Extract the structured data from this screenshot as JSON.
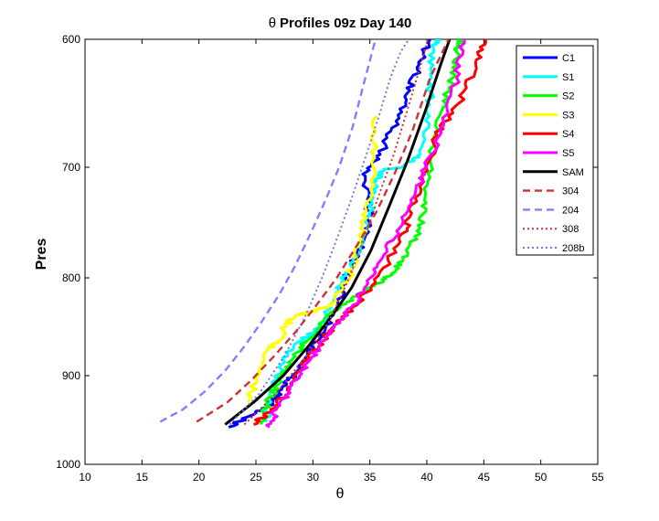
{
  "chart_data": {
    "type": "line",
    "title_symbol": "θ",
    "title_text": "Profiles 09z Day 140",
    "xlabel": "θ",
    "ylabel": "Pres",
    "xlim": [
      10,
      55
    ],
    "ylim": [
      600,
      1000
    ],
    "y_reversed": true,
    "x_ticks": [
      10,
      15,
      20,
      25,
      30,
      35,
      40,
      45,
      50,
      55
    ],
    "y_ticks": [
      600,
      700,
      800,
      900,
      1000
    ],
    "y_tick_positions": [
      600,
      700,
      800,
      900,
      1000
    ],
    "grid": false,
    "legend_position": "top-right",
    "series": [
      {
        "name": "C1",
        "color": "#0000ff",
        "dash": "solid",
        "width": 3,
        "x": [
          22.6,
          25.0,
          26.5,
          27.3,
          28.4,
          29.5,
          30.6,
          31.8,
          32.9,
          33.9,
          35.0,
          34.6,
          35.9,
          37.3,
          38.5,
          39.3,
          40.3
        ],
        "y": [
          958,
          942,
          932,
          914,
          898,
          880,
          858,
          838,
          800,
          778,
          750,
          708,
          690,
          664,
          640,
          620,
          600
        ]
      },
      {
        "name": "S1",
        "color": "#00ffff",
        "dash": "solid",
        "width": 3,
        "x": [
          26.0,
          26.2,
          27.3,
          28.4,
          30.2,
          31.6,
          32.5,
          33.9,
          35.0,
          35.4,
          36.3,
          37.8,
          39.4,
          40.2,
          40.4,
          40.5,
          41.0
        ],
        "y": [
          952,
          920,
          888,
          868,
          855,
          830,
          805,
          780,
          740,
          715,
          702,
          700,
          690,
          660,
          630,
          605,
          600
        ]
      },
      {
        "name": "S2",
        "color": "#00ff00",
        "dash": "solid",
        "width": 3,
        "x": [
          25.5,
          26.0,
          27.1,
          28.3,
          29.5,
          31.6,
          33.9,
          35.4,
          36.9,
          38.3,
          39.4,
          39.8,
          40.3,
          41.3,
          42.3,
          42.6,
          42.9
        ],
        "y": [
          955,
          930,
          905,
          882,
          864,
          835,
          818,
          808,
          796,
          780,
          755,
          730,
          695,
          656,
          630,
          610,
          600
        ]
      },
      {
        "name": "S3",
        "color": "#ffff00",
        "dash": "solid",
        "width": 3,
        "x": [
          24.3,
          25.2,
          25.9,
          27.1,
          27.6,
          28.6,
          30.2,
          31.8,
          33.0,
          34.1,
          34.7,
          35.3,
          35.6
        ],
        "y": [
          930,
          900,
          875,
          864,
          848,
          838,
          834,
          826,
          804,
          770,
          740,
          700,
          660
        ]
      },
      {
        "name": "S4",
        "color": "#ff0000",
        "dash": "solid",
        "width": 3,
        "x": [
          24.8,
          26.0,
          27.6,
          28.8,
          30.5,
          31.8,
          33.5,
          35.5,
          37.5,
          38.5,
          39.6,
          40.9,
          42.8,
          44.3,
          45.1
        ],
        "y": [
          955,
          942,
          922,
          895,
          870,
          850,
          830,
          805,
          770,
          745,
          710,
          675,
          650,
          620,
          600
        ]
      },
      {
        "name": "S5",
        "color": "#ff00ff",
        "dash": "solid",
        "width": 3,
        "x": [
          26.2,
          26.8,
          28.0,
          29.1,
          30.5,
          31.9,
          33.4,
          34.7,
          36.1,
          37.6,
          39.0,
          40.4,
          41.5,
          42.6,
          43.3
        ],
        "y": [
          958,
          938,
          915,
          894,
          872,
          850,
          830,
          808,
          782,
          755,
          723,
          690,
          665,
          630,
          600
        ]
      },
      {
        "name": "SAM",
        "color": "#000000",
        "dash": "solid",
        "width": 3,
        "x": [
          22.3,
          24.8,
          27.4,
          29.6,
          31.6,
          33.4,
          35.1,
          36.7,
          38.3,
          39.9,
          41.2,
          42.0
        ],
        "y": [
          955,
          930,
          900,
          870,
          840,
          810,
          775,
          735,
          695,
          655,
          620,
          600
        ]
      },
      {
        "name": "304",
        "color": "#cc3333",
        "dash": "8,5",
        "width": 2.4,
        "x": [
          19.8,
          22.5,
          24.6,
          26.6,
          28.5,
          30.3,
          32.1,
          33.9,
          35.6,
          37.2,
          38.8,
          40.3,
          41.9
        ],
        "y": [
          952,
          930,
          905,
          880,
          855,
          828,
          800,
          770,
          740,
          705,
          670,
          630,
          600
        ]
      },
      {
        "name": "204",
        "color": "#8080ff",
        "dash": "8,5",
        "width": 2.4,
        "x": [
          16.6,
          18.6,
          20.5,
          22.3,
          24.0,
          25.5,
          27.0,
          28.4,
          29.8,
          31.1,
          32.3,
          33.5,
          34.6,
          35.5
        ],
        "y": [
          952,
          938,
          918,
          895,
          870,
          845,
          818,
          790,
          760,
          730,
          700,
          668,
          630,
          600
        ]
      },
      {
        "name": "308",
        "color": "#cc3333",
        "dash": "2,3",
        "width": 2,
        "x": [
          24.0,
          26.8,
          29.4,
          31.4,
          33.0,
          34.5,
          35.8,
          37.1,
          38.3,
          39.3,
          40.1
        ],
        "y": [
          955,
          920,
          880,
          845,
          805,
          765,
          725,
          690,
          655,
          625,
          600
        ]
      },
      {
        "name": "208b",
        "color": "#7777dd",
        "dash": "2,3",
        "width": 2,
        "x": [
          22.7,
          25.3,
          27.5,
          29.3,
          30.8,
          32.2,
          33.5,
          34.7,
          35.8,
          36.8,
          37.7,
          38.4
        ],
        "y": [
          955,
          920,
          880,
          840,
          800,
          762,
          725,
          690,
          660,
          630,
          610,
          600
        ]
      }
    ]
  }
}
